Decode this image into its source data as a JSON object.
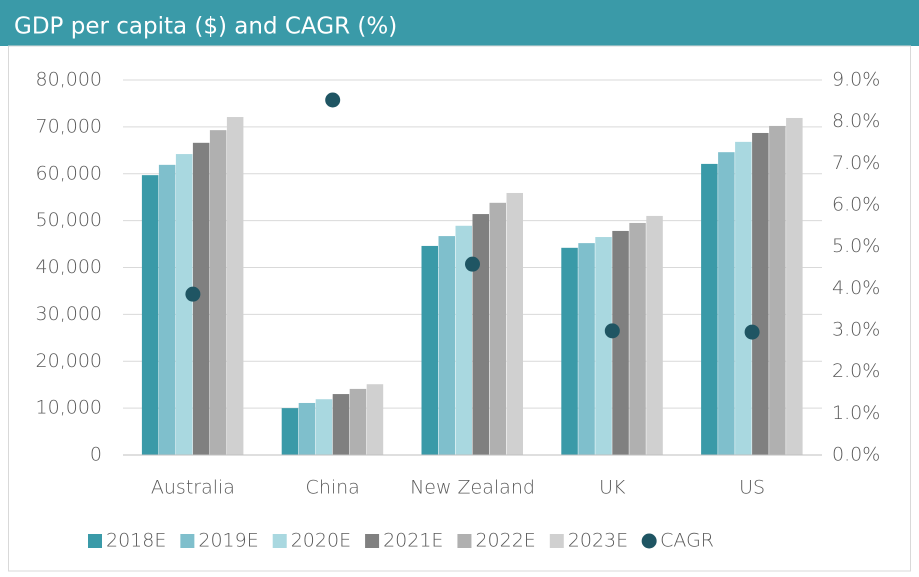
{
  "chart_data": {
    "type": "bar",
    "title": "GDP per capita ($) and CAGR (%)",
    "categories": [
      "Australia",
      "China",
      "New Zealand",
      "UK",
      "US"
    ],
    "series": [
      {
        "name": "2018E",
        "color": "#3a9aa8",
        "values": [
          59700,
          10000,
          44600,
          44200,
          62100
        ]
      },
      {
        "name": "2019E",
        "color": "#7fbfcc",
        "values": [
          61900,
          11100,
          46700,
          45200,
          64600
        ]
      },
      {
        "name": "2020E",
        "color": "#a9d8e0",
        "values": [
          64200,
          11900,
          48900,
          46500,
          66800
        ]
      },
      {
        "name": "2021E",
        "color": "#808080",
        "values": [
          66600,
          13000,
          51400,
          47800,
          68700
        ]
      },
      {
        "name": "2022E",
        "color": "#b0b0b0",
        "values": [
          69300,
          14100,
          53800,
          49500,
          70200
        ]
      },
      {
        "name": "2023E",
        "color": "#d0d0d0",
        "values": [
          72100,
          15100,
          55900,
          51000,
          71900
        ]
      },
      {
        "name": "CAGR",
        "color": "#1f5563",
        "type": "scatter",
        "axis": "y2",
        "values": [
          3.86,
          8.52,
          4.58,
          2.98,
          2.95
        ]
      }
    ],
    "ylim": [
      0,
      80000
    ],
    "yticks": [
      0,
      {
        "value": 10000,
        "label": "10,000"
      },
      {
        "value": 20000,
        "label": "20,000"
      },
      {
        "value": 30000,
        "label": "30,000"
      },
      {
        "value": 40000,
        "label": "40,000"
      },
      {
        "value": 50000,
        "label": "50,000"
      },
      {
        "value": 60000,
        "label": "60,000"
      },
      {
        "value": 70000,
        "label": "70,000"
      },
      {
        "value": 80000,
        "label": "80,000"
      }
    ],
    "y2lim": [
      0,
      9
    ],
    "y2ticks": [
      {
        "value": 0,
        "label": "0.0%"
      },
      {
        "value": 1,
        "label": "1.0%"
      },
      {
        "value": 2,
        "label": "2.0%"
      },
      {
        "value": 3,
        "label": "3.0%"
      },
      {
        "value": 4,
        "label": "4.0%"
      },
      {
        "value": 5,
        "label": "5.0%"
      },
      {
        "value": 6,
        "label": "6.0%"
      },
      {
        "value": 7,
        "label": "7.0%"
      },
      {
        "value": 8,
        "label": "8.0%"
      },
      {
        "value": 9,
        "label": "9.0%"
      }
    ],
    "grid": true,
    "legend": "bottom"
  }
}
